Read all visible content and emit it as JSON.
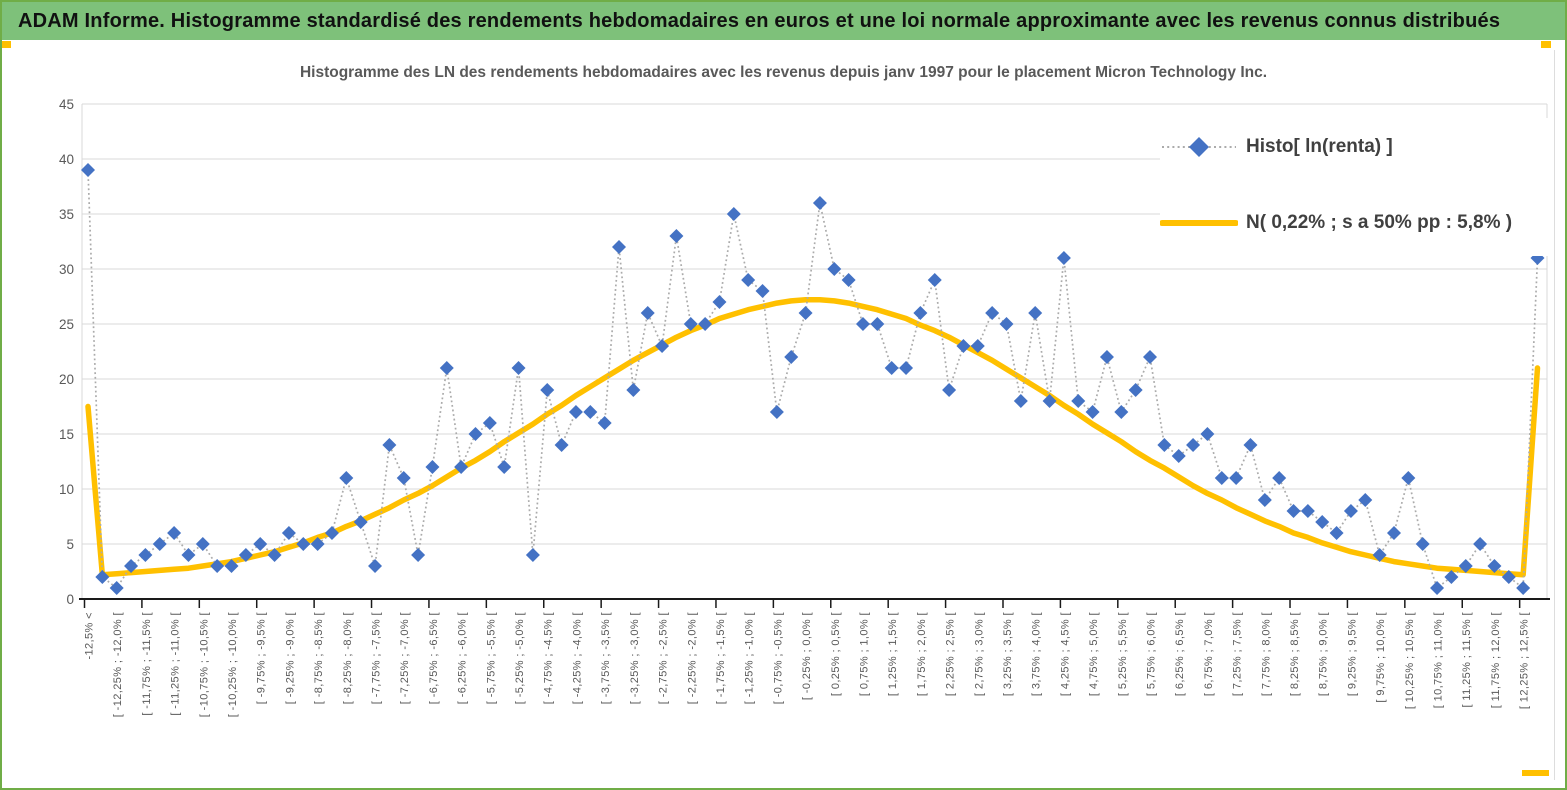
{
  "window": {
    "header_title": "ADAM Informe. Histogramme standardisé des rendements hebdomadaires en euros et une loi normale approximante avec les revenus connus distribués"
  },
  "colors": {
    "header_green": "#7EC17A",
    "border_green": "#70AD47",
    "handle_gold": "#FFC000",
    "series_blue": "#4472C4",
    "curve_gold": "#FFC000",
    "dotted_connector_gray": "#ABABAB",
    "gridline_gray": "#D9D9D9",
    "axis_line_black": "#1a1a1a",
    "axis_text_gray": "#595959",
    "title_text_gray": "#595959",
    "legend_text_gray": "#404040"
  },
  "chart_data": {
    "type": "line",
    "title": "Histogramme des LN des rendements hebdomadaires avec les revenus depuis janv 1997 pour le placement Micron Technology Inc.",
    "ylim": [
      0,
      45
    ],
    "y_ticks": [
      0,
      5,
      10,
      15,
      20,
      25,
      30,
      35,
      40,
      45
    ],
    "grid": true,
    "legend_position": "top-right",
    "x_label_every": 2,
    "x_labels": [
      "-12,5% <",
      "[ -12,25% ; -12,0% [",
      "[ -11,75% ; -11,5% [",
      "[ -11,25% ; -11,0% [",
      "[ -10,75% ; -10,5% [",
      "[ -10,25% ; -10,0% [",
      "[ -9,75% ; -9,5% [",
      "[ -9,25% ; -9,0% [",
      "[ -8,75% ; -8,5% [",
      "[ -8,25% ; -8,0% [",
      "[ -7,75% ; -7,5% [",
      "[ -7,25% ; -7,0% [",
      "[ -6,75% ; -6,5% [",
      "[ -6,25% ; -6,0% [",
      "[ -5,75% ; -5,5% [",
      "[ -5,25% ; -5,0% [",
      "[ -4,75% ; -4,5% [",
      "[ -4,25% ; -4,0% [",
      "[ -3,75% ; -3,5% [",
      "[ -3,25% ; -3,0% [",
      "[ -2,75% ; -2,5% [",
      "[ -2,25% ; -2,0% [",
      "[ -1,75% ; -1,5% [",
      "[ -1,25% ; -1,0% [",
      "[ -0,75% ; -0,5% [",
      "[ -0,25% ; 0,0% [",
      "[ 0,25% ; 0,5% [",
      "[ 0,75% ; 1,0% [",
      "[ 1,25% ; 1,5% [",
      "[ 1,75% ; 2,0% [",
      "[ 2,25% ; 2,5% [",
      "[ 2,75% ; 3,0% [",
      "[ 3,25% ; 3,5% [",
      "[ 3,75% ; 4,0% [",
      "[ 4,25% ; 4,5% [",
      "[ 4,75% ; 5,0% [",
      "[ 5,25% ; 5,5% [",
      "[ 5,75% ; 6,0% [",
      "[ 6,25% ; 6,5% [",
      "[ 6,75% ; 7,0% [",
      "[ 7,25% ; 7,5% [",
      "[ 7,75% ; 8,0% [",
      "[ 8,25% ; 8,5% [",
      "[ 8,75% ; 9,0% [",
      "[ 9,25% ; 9,5% [",
      "[ 9,75% ; 10,0% [",
      "[ 10,25% ; 10,5% [",
      "[ 10,75% ; 11,0% [",
      "[ 11,25% ; 11,5% [",
      "[ 11,75% ; 12,0% [",
      "[ 12,25% ; 12,5% ["
    ],
    "series": [
      {
        "name": "Histo[ ln(renta) ]",
        "color": "#4472C4",
        "marker": "diamond",
        "line_style": "dotted-gray",
        "values": [
          39,
          2,
          1,
          3,
          4,
          5,
          6,
          4,
          5,
          3,
          3,
          4,
          5,
          4,
          6,
          5,
          5,
          6,
          11,
          7,
          3,
          14,
          11,
          4,
          12,
          21,
          12,
          15,
          16,
          12,
          21,
          4,
          19,
          14,
          17,
          17,
          16,
          32,
          19,
          26,
          23,
          33,
          25,
          25,
          27,
          35,
          29,
          28,
          17,
          22,
          26,
          36,
          30,
          29,
          25,
          25,
          21,
          21,
          26,
          29,
          19,
          23,
          23,
          26,
          25,
          18,
          26,
          18,
          31,
          18,
          17,
          22,
          17,
          19,
          22,
          14,
          13,
          14,
          15,
          11,
          11,
          14,
          9,
          11,
          8,
          8,
          7,
          6,
          8,
          9,
          4,
          6,
          11,
          5,
          1,
          2,
          3,
          5,
          3,
          2,
          1,
          31
        ]
      },
      {
        "name": "N( 0,22% ; s a 50% pp : 5,8% )",
        "color": "#FFC000",
        "marker": "none",
        "line_style": "solid-thick",
        "values": [
          17.5,
          2.2,
          2.3,
          2.4,
          2.5,
          2.6,
          2.7,
          2.8,
          3.0,
          3.2,
          3.4,
          3.7,
          4.0,
          4.3,
          4.7,
          5.1,
          5.6,
          6.0,
          6.6,
          7.1,
          7.7,
          8.3,
          9.0,
          9.6,
          10.3,
          11.1,
          11.9,
          12.6,
          13.4,
          14.3,
          15.1,
          15.9,
          16.8,
          17.6,
          18.5,
          19.3,
          20.1,
          20.9,
          21.7,
          22.4,
          23.1,
          23.8,
          24.4,
          24.9,
          25.5,
          25.9,
          26.3,
          26.6,
          26.9,
          27.1,
          27.2,
          27.2,
          27.1,
          26.9,
          26.6,
          26.3,
          25.9,
          25.5,
          24.9,
          24.4,
          23.8,
          23.1,
          22.4,
          21.7,
          20.9,
          20.1,
          19.3,
          18.5,
          17.6,
          16.8,
          15.9,
          15.1,
          14.3,
          13.4,
          12.6,
          11.9,
          11.1,
          10.3,
          9.6,
          9.0,
          8.3,
          7.7,
          7.1,
          6.6,
          6.0,
          5.6,
          5.1,
          4.7,
          4.3,
          4.0,
          3.7,
          3.4,
          3.2,
          3.0,
          2.8,
          2.7,
          2.6,
          2.5,
          2.4,
          2.3,
          2.2,
          21.0
        ]
      }
    ]
  },
  "legend": {
    "entries": [
      {
        "label": "Histo[ ln(renta) ]"
      },
      {
        "label": "N( 0,22% ; s a 50% pp : 5,8% )"
      }
    ]
  }
}
